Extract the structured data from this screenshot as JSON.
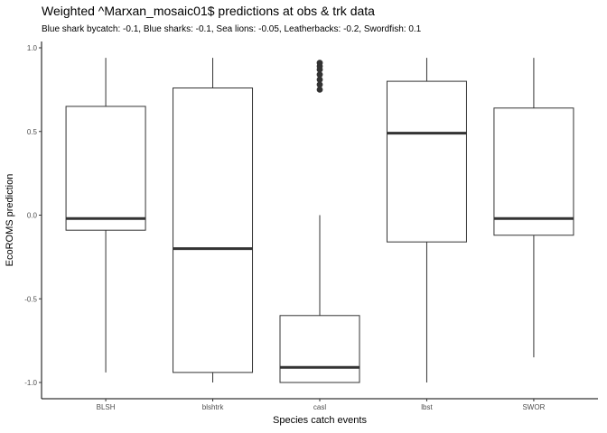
{
  "chart": {
    "title": "Weighted ^Marxan_mosaic01$ predictions at obs & trk data",
    "subtitle": "Blue shark bycatch: -0.1, Blue sharks: -0.1, Sea lions: -0.05, Leatherbacks: -0.2, Swordfish: 0.1"
  },
  "chart_data": {
    "type": "box",
    "title": "Weighted ^Marxan_mosaic01$ predictions at obs & trk data",
    "subtitle": "Blue shark bycatch: -0.1, Blue sharks: -0.1, Sea lions: -0.05, Leatherbacks: -0.2, Swordfish: 0.1",
    "xlabel": "Species catch events",
    "ylabel": "EcoROMS prediction",
    "ylim": [
      -1.05,
      1.05
    ],
    "yticks": [
      -1.0,
      -0.5,
      0.0,
      0.5,
      1.0
    ],
    "ytick_labels": [
      "-1.0",
      "-0.5",
      "0.0",
      "0.5",
      "1.0"
    ],
    "grid": false,
    "categories": [
      "BLSH",
      "blshtrk",
      "casl",
      "lbst",
      "SWOR"
    ],
    "boxes": [
      {
        "category": "BLSH",
        "whisker_low": -0.94,
        "q1": -0.09,
        "median": -0.02,
        "q3": 0.65,
        "whisker_high": 0.94,
        "outliers": []
      },
      {
        "category": "blshtrk",
        "whisker_low": -1.0,
        "q1": -0.94,
        "median": -0.2,
        "q3": 0.76,
        "whisker_high": 0.94,
        "outliers": []
      },
      {
        "category": "casl",
        "whisker_low": -1.0,
        "q1": -1.0,
        "median": -0.91,
        "q3": -0.6,
        "whisker_high": 0.0,
        "outliers": [
          0.75,
          0.78,
          0.81,
          0.84,
          0.87,
          0.89,
          0.91
        ]
      },
      {
        "category": "lbst",
        "whisker_low": -1.0,
        "q1": -0.16,
        "median": 0.49,
        "q3": 0.8,
        "whisker_high": 0.94,
        "outliers": []
      },
      {
        "category": "SWOR",
        "whisker_low": -0.85,
        "q1": -0.12,
        "median": -0.02,
        "q3": 0.64,
        "whisker_high": 0.94,
        "outliers": []
      }
    ]
  }
}
